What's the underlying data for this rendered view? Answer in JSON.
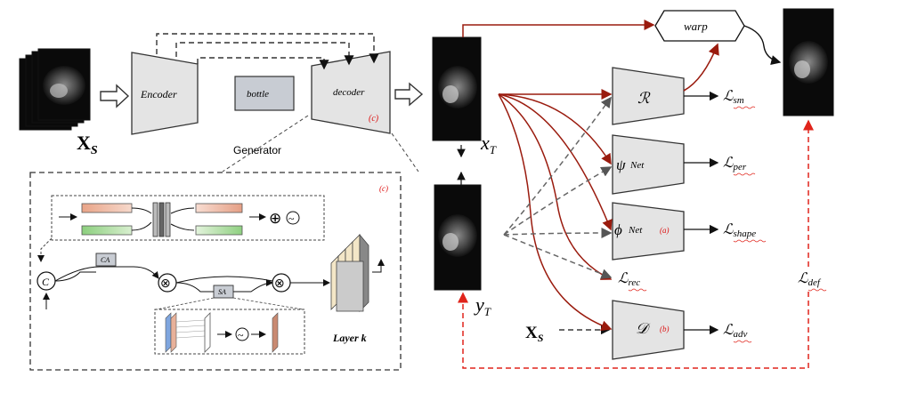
{
  "generator": {
    "encoder": "Encoder",
    "bottle": "bottle",
    "decoder": "decoder",
    "decoder_tag": "(c)",
    "caption": "Generator"
  },
  "inputs": {
    "source_label": "X",
    "source_sub": "S",
    "xs_label": "X",
    "xs_sub": "S"
  },
  "outputs": {
    "xt_label": "x",
    "xt_sub": "T",
    "yt_label": "y",
    "yt_sub": "T"
  },
  "warp": "warp",
  "networks": {
    "r": "ℛ",
    "psi": "ψ",
    "psi_net": "Net",
    "phi": "ϕ",
    "phi_net": "Net",
    "phi_tag": "(a)",
    "d": "𝒟",
    "d_tag": "(b)"
  },
  "losses": {
    "sm": "sm",
    "per": "per",
    "shape": "shape",
    "rec": "rec",
    "adv": "adv",
    "def": "def"
  },
  "detail": {
    "tag": "(c)",
    "c_symbol": "C",
    "ca": "CA",
    "sa": "SA",
    "mult": "⊗",
    "plus": "⊕",
    "sigmoid": "~",
    "layer": "Layer k"
  },
  "colors": {
    "accent_red": "#9a1b0e",
    "dashed_red": "#e0241b",
    "box_fill": "#e4e4e4",
    "bottle_fill": "#c8ccd3"
  }
}
